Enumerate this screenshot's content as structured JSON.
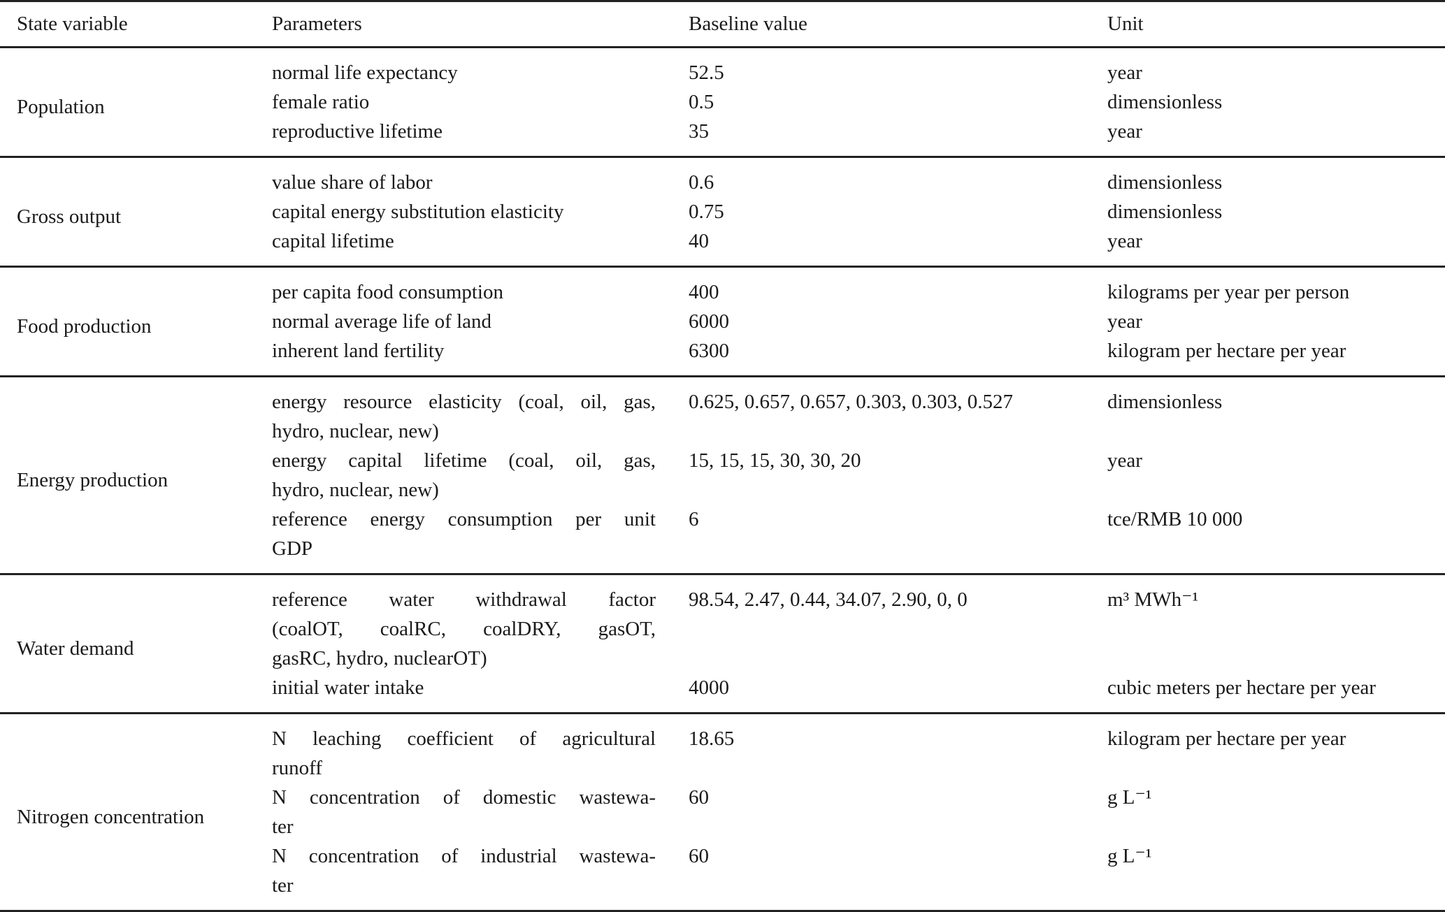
{
  "table": {
    "headers": [
      "State variable",
      "Parameters",
      "Baseline value",
      "Unit"
    ],
    "groups": [
      {
        "state_variable": "Population",
        "rows": [
          {
            "parameter": [
              "normal life expectancy"
            ],
            "value": "52.5",
            "unit": "year"
          },
          {
            "parameter": [
              "female ratio"
            ],
            "value": "0.5",
            "unit": "dimensionless"
          },
          {
            "parameter": [
              "reproductive lifetime"
            ],
            "value": "35",
            "unit": "year"
          }
        ]
      },
      {
        "state_variable": "Gross output",
        "rows": [
          {
            "parameter": [
              "value share of labor"
            ],
            "value": "0.6",
            "unit": "dimensionless"
          },
          {
            "parameter": [
              "capital energy substitution elasticity"
            ],
            "value": "0.75",
            "unit": "dimensionless"
          },
          {
            "parameter": [
              "capital lifetime"
            ],
            "value": "40",
            "unit": "year"
          }
        ]
      },
      {
        "state_variable": "Food production",
        "rows": [
          {
            "parameter": [
              "per capita food consumption"
            ],
            "value": "400",
            "unit": "kilograms per year per person"
          },
          {
            "parameter": [
              "normal average life of land"
            ],
            "value": "6000",
            "unit": "year"
          },
          {
            "parameter": [
              "inherent land fertility"
            ],
            "value": "6300",
            "unit": "kilogram per hectare per year"
          }
        ]
      },
      {
        "state_variable": "Energy production",
        "rows": [
          {
            "parameter": [
              "energy resource elasticity (coal, oil, gas,",
              "hydro, nuclear, new)"
            ],
            "value": "0.625, 0.657, 0.657, 0.303, 0.303, 0.527",
            "unit": "dimensionless"
          },
          {
            "parameter": [
              "energy capital lifetime (coal, oil, gas,",
              "hydro, nuclear, new)"
            ],
            "value": "15, 15, 15, 30, 30, 20",
            "unit": "year"
          },
          {
            "parameter": [
              "reference energy consumption per unit",
              "GDP"
            ],
            "value": "6",
            "unit": "tce/RMB 10 000"
          }
        ]
      },
      {
        "state_variable": "Water demand",
        "rows": [
          {
            "parameter": [
              "reference water withdrawal factor",
              "(coalOT, coalRC, coalDRY, gasOT,",
              "gasRC, hydro, nuclearOT)"
            ],
            "value": "98.54, 2.47, 0.44, 34.07, 2.90, 0, 0",
            "unit": "m³ MWh⁻¹"
          },
          {
            "parameter": [
              "initial water intake"
            ],
            "value": "4000",
            "unit": "cubic meters per hectare per year"
          }
        ]
      },
      {
        "state_variable": "Nitrogen concentration",
        "rows": [
          {
            "parameter": [
              "N leaching coefficient of agricultural",
              "runoff"
            ],
            "value": "18.65",
            "unit": "kilogram per hectare per year"
          },
          {
            "parameter": [
              "N concentration of domestic wastewa-",
              "ter"
            ],
            "value": "60",
            "unit": "g L⁻¹"
          },
          {
            "parameter": [
              "N concentration of industrial wastewa-",
              "ter"
            ],
            "value": "60",
            "unit": "g L⁻¹"
          }
        ]
      }
    ]
  }
}
